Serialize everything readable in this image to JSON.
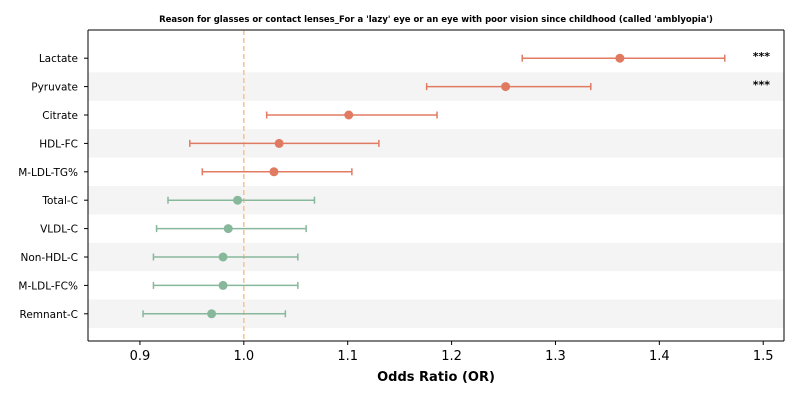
{
  "chart_data": {
    "type": "forest",
    "title": "Reason for glasses or contact lenses_For a 'lazy' eye or an eye with poor vision since childhood (called 'amblyopia')",
    "xlabel": "Odds Ratio (OR)",
    "xlim": [
      0.85,
      1.52
    ],
    "xticks": [
      0.9,
      1.0,
      1.1,
      1.2,
      1.3,
      1.4,
      1.5
    ],
    "tick_labels": [
      "0.9",
      "1.0",
      "1.1",
      "1.2",
      "1.3",
      "1.4",
      "1.5"
    ],
    "reference_line": 1.0,
    "row_shading": "alternating",
    "colors": {
      "risk": "#e07b62",
      "protective": "#88b89b",
      "reference": "#f5c48a",
      "stripe": "#f4f4f4"
    },
    "rows": [
      {
        "label": "Lactate",
        "or": 1.362,
        "lo": 1.268,
        "hi": 1.463,
        "group": "risk",
        "sig": "***"
      },
      {
        "label": "Pyruvate",
        "or": 1.252,
        "lo": 1.176,
        "hi": 1.334,
        "group": "risk",
        "sig": "***"
      },
      {
        "label": "Citrate",
        "or": 1.101,
        "lo": 1.022,
        "hi": 1.186,
        "group": "risk",
        "sig": ""
      },
      {
        "label": "HDL-FC",
        "or": 1.034,
        "lo": 0.948,
        "hi": 1.13,
        "group": "risk",
        "sig": ""
      },
      {
        "label": "M-LDL-TG%",
        "or": 1.029,
        "lo": 0.96,
        "hi": 1.104,
        "group": "risk",
        "sig": ""
      },
      {
        "label": "Total-C",
        "or": 0.994,
        "lo": 0.927,
        "hi": 1.068,
        "group": "protective",
        "sig": ""
      },
      {
        "label": "VLDL-C",
        "or": 0.985,
        "lo": 0.916,
        "hi": 1.06,
        "group": "protective",
        "sig": ""
      },
      {
        "label": "Non-HDL-C",
        "or": 0.98,
        "lo": 0.913,
        "hi": 1.052,
        "group": "protective",
        "sig": ""
      },
      {
        "label": "M-LDL-FC%",
        "or": 0.98,
        "lo": 0.913,
        "hi": 1.052,
        "group": "protective",
        "sig": ""
      },
      {
        "label": "Remnant-C",
        "or": 0.969,
        "lo": 0.903,
        "hi": 1.04,
        "group": "protective",
        "sig": ""
      }
    ]
  }
}
